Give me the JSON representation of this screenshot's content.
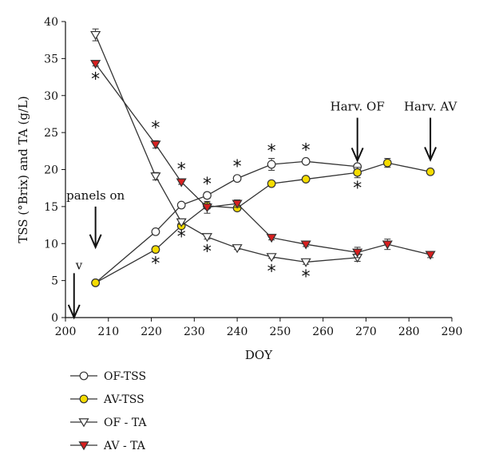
{
  "chart_data": {
    "type": "line",
    "xlabel": "DOY",
    "ylabel": "TSS (°Brix) and TA (g/L)",
    "xlim": [
      200,
      290
    ],
    "ylim": [
      0,
      40
    ],
    "xticks": [
      200,
      210,
      220,
      230,
      240,
      250,
      260,
      270,
      280,
      290
    ],
    "yticks": [
      0,
      5,
      10,
      15,
      20,
      25,
      30,
      35,
      40
    ],
    "grid": false,
    "legend_position": "bottom-left",
    "series": [
      {
        "name": "OF-TSS",
        "marker": "circle",
        "fill": "#ffffff",
        "x": [
          207,
          221,
          227,
          233,
          240,
          248,
          256,
          268
        ],
        "y": [
          4.7,
          11.6,
          15.2,
          16.5,
          18.8,
          20.7,
          21.1,
          20.4
        ],
        "err": [
          0.2,
          0.3,
          0.3,
          0.4,
          0.3,
          0.8,
          0.3,
          0.3
        ]
      },
      {
        "name": "AV-TSS",
        "marker": "circle",
        "fill": "#f5dc00",
        "x": [
          207,
          221,
          227,
          233,
          240,
          248,
          256,
          268,
          275,
          285
        ],
        "y": [
          4.7,
          9.2,
          12.4,
          15.1,
          14.8,
          18.1,
          18.7,
          19.6,
          20.9,
          19.7
        ],
        "err": [
          0.2,
          0.4,
          0.3,
          0.4,
          0.3,
          0.2,
          0.3,
          0.7,
          0.6,
          0.3
        ]
      },
      {
        "name": "OF - TA",
        "marker": "triangle-down",
        "fill": "#ffffff",
        "x": [
          207,
          221,
          227,
          233,
          240,
          248,
          256,
          268
        ],
        "y": [
          38.2,
          19.1,
          12.9,
          10.9,
          9.4,
          8.2,
          7.5,
          8.1
        ],
        "err": [
          0.8,
          0.5,
          0.3,
          0.3,
          0.2,
          0.2,
          0.3,
          0.5
        ]
      },
      {
        "name": "AV - TA",
        "marker": "triangle-down",
        "fill": "#d81f1f",
        "x": [
          207,
          221,
          227,
          233,
          240,
          248,
          256,
          268,
          275,
          285
        ],
        "y": [
          34.3,
          23.4,
          18.3,
          14.9,
          15.4,
          10.8,
          9.9,
          8.8,
          9.9,
          8.5
        ],
        "err": [
          0.3,
          0.5,
          0.3,
          0.8,
          0.5,
          0.3,
          0.3,
          0.7,
          0.7,
          0.4
        ]
      }
    ],
    "significance_markers": [
      {
        "x": 207,
        "y": 32.3
      },
      {
        "x": 221,
        "y": 25.7
      },
      {
        "x": 221,
        "y": 7.4
      },
      {
        "x": 227,
        "y": 20.1
      },
      {
        "x": 227,
        "y": 11.0
      },
      {
        "x": 233,
        "y": 18.1
      },
      {
        "x": 233,
        "y": 9.0
      },
      {
        "x": 240,
        "y": 20.5
      },
      {
        "x": 248,
        "y": 22.6
      },
      {
        "x": 248,
        "y": 6.3
      },
      {
        "x": 256,
        "y": 22.7
      },
      {
        "x": 256,
        "y": 5.6
      },
      {
        "x": 268,
        "y": 17.6
      }
    ],
    "annotations": [
      {
        "label": "v",
        "x": 202,
        "y_from": 6,
        "y_to": 0
      },
      {
        "label": "panels on",
        "x": 207,
        "y_from": 15,
        "y_to": 9.5
      },
      {
        "label": "Harv. OF",
        "x": 268,
        "y_from": 27,
        "y_to": 21.2
      },
      {
        "label": "Harv. AV",
        "x": 285,
        "y_from": 27,
        "y_to": 21.3
      }
    ]
  }
}
